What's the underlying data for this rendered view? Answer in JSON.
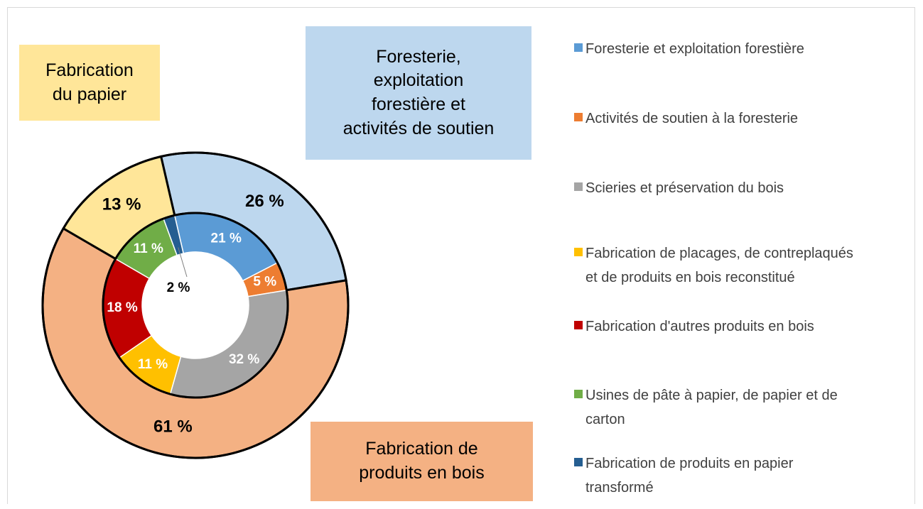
{
  "chart_data": {
    "type": "donut",
    "rings": [
      {
        "categories": [
          "Foresterie,\nexploitation\nforestière et\nactivités de soutien",
          "Fabrication de\nproduits en bois",
          "Fabrication\ndu papier"
        ],
        "values": [
          26,
          61,
          13
        ],
        "value_labels": [
          "26 %",
          "61 %",
          "13 %"
        ],
        "colors": [
          "#bdd7ee",
          "#f4b183",
          "#ffe699"
        ]
      },
      {
        "categories": [
          "Foresterie et exploitation forestière",
          "Activités de soutien à la foresterie",
          "Scieries et préservation du bois",
          "Fabrication de placages, de contreplaqués\net de produits en bois reconstitué",
          "Fabrication d'autres produits en bois",
          "Usines de pâte à papier, de papier et de\ncarton",
          "Fabrication de produits en papier\ntransformé"
        ],
        "values": [
          21,
          5,
          32,
          11,
          18,
          11,
          2
        ],
        "value_labels": [
          "21 %",
          "5 %",
          "32 %",
          "11 %",
          "18 %",
          "11 %",
          "2 %"
        ],
        "colors": [
          "#5b9bd5",
          "#ed7d31",
          "#a5a5a5",
          "#ffc000",
          "#c00000",
          "#70ad47",
          "#255e91"
        ]
      }
    ],
    "legend": "right"
  }
}
